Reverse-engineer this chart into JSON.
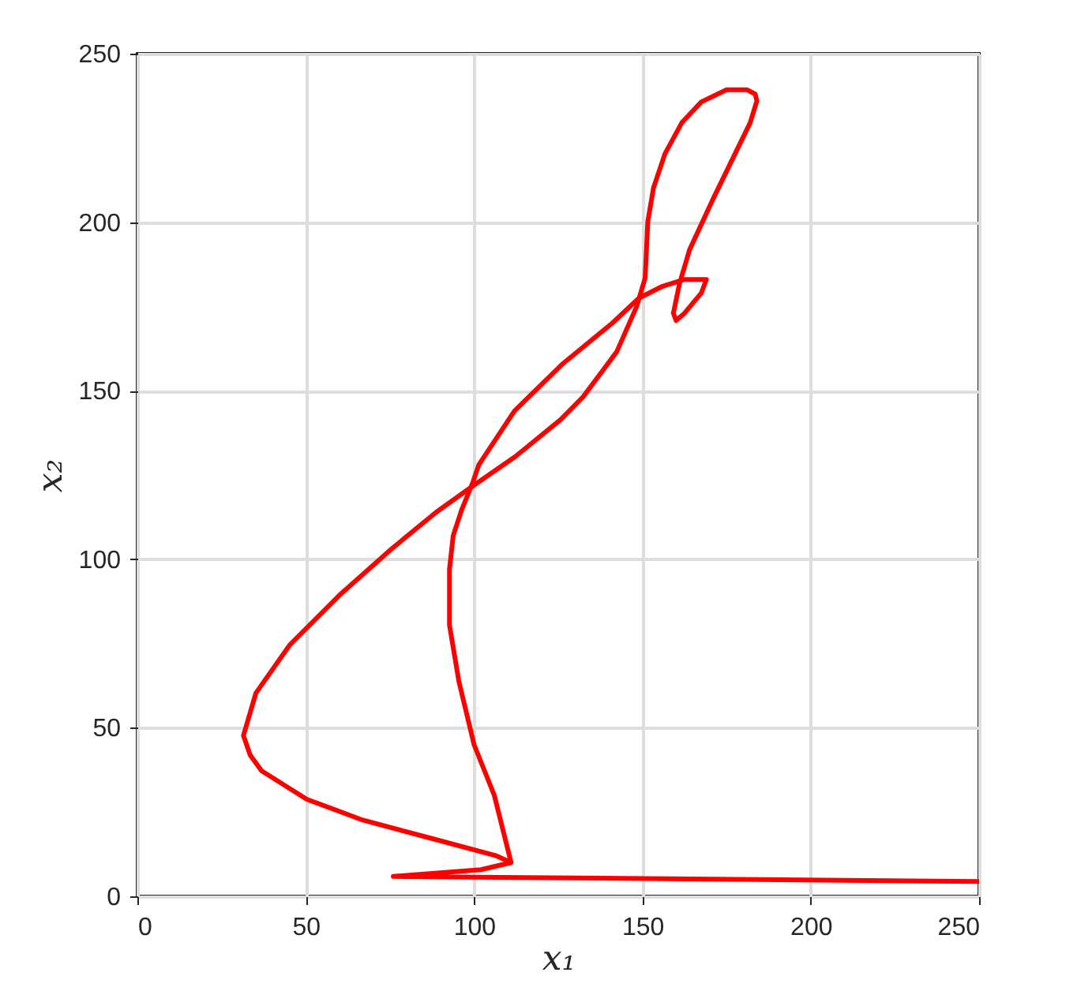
{
  "chart_data": {
    "type": "line",
    "xlabel": "x₁",
    "ylabel": "x₂",
    "xlim": [
      0,
      250
    ],
    "xticks": [
      0,
      50,
      100,
      150,
      200,
      250
    ],
    "ylim": [
      0,
      250
    ],
    "yticks": [
      0,
      50,
      100,
      150,
      200,
      250
    ],
    "grid": true,
    "series": [
      {
        "color": "#ff0000",
        "x": [
          250,
          76,
          102,
          111,
          106,
          100,
          95.5,
          92.7,
          92.7,
          93.8,
          96.3,
          99.7,
          101.4,
          112,
          126,
          141,
          149,
          156,
          162.5,
          169,
          167.5,
          162.5,
          160,
          159.2,
          161,
          164,
          171,
          182,
          184,
          183.5,
          181,
          175,
          167.5,
          161.7,
          156.7,
          153.3,
          151.6,
          150.8,
          148.3,
          142.4,
          132.4,
          125.7,
          112.3,
          99.7,
          88.8,
          75.4,
          60.3,
          45.2,
          35.2,
          31.5,
          33.5,
          36.9,
          50.3,
          67,
          88.8,
          106.4,
          111
        ],
        "values": [
          4.4,
          5.9,
          7.9,
          10,
          30,
          45,
          63.7,
          80.4,
          97,
          107,
          114.6,
          123,
          128,
          144,
          157.7,
          170,
          177.5,
          181,
          183,
          183,
          179,
          173,
          170.8,
          173,
          181.7,
          191.8,
          206.9,
          229.5,
          236,
          238,
          239.3,
          239.3,
          235.7,
          229.5,
          220.3,
          210.2,
          200.2,
          183.4,
          175,
          161.6,
          148.2,
          141.4,
          130.5,
          121.8,
          114,
          103,
          89.6,
          74.5,
          60.3,
          47.7,
          41.9,
          37.2,
          28.8,
          22.6,
          16.8,
          12.1,
          10
        ]
      }
    ]
  }
}
